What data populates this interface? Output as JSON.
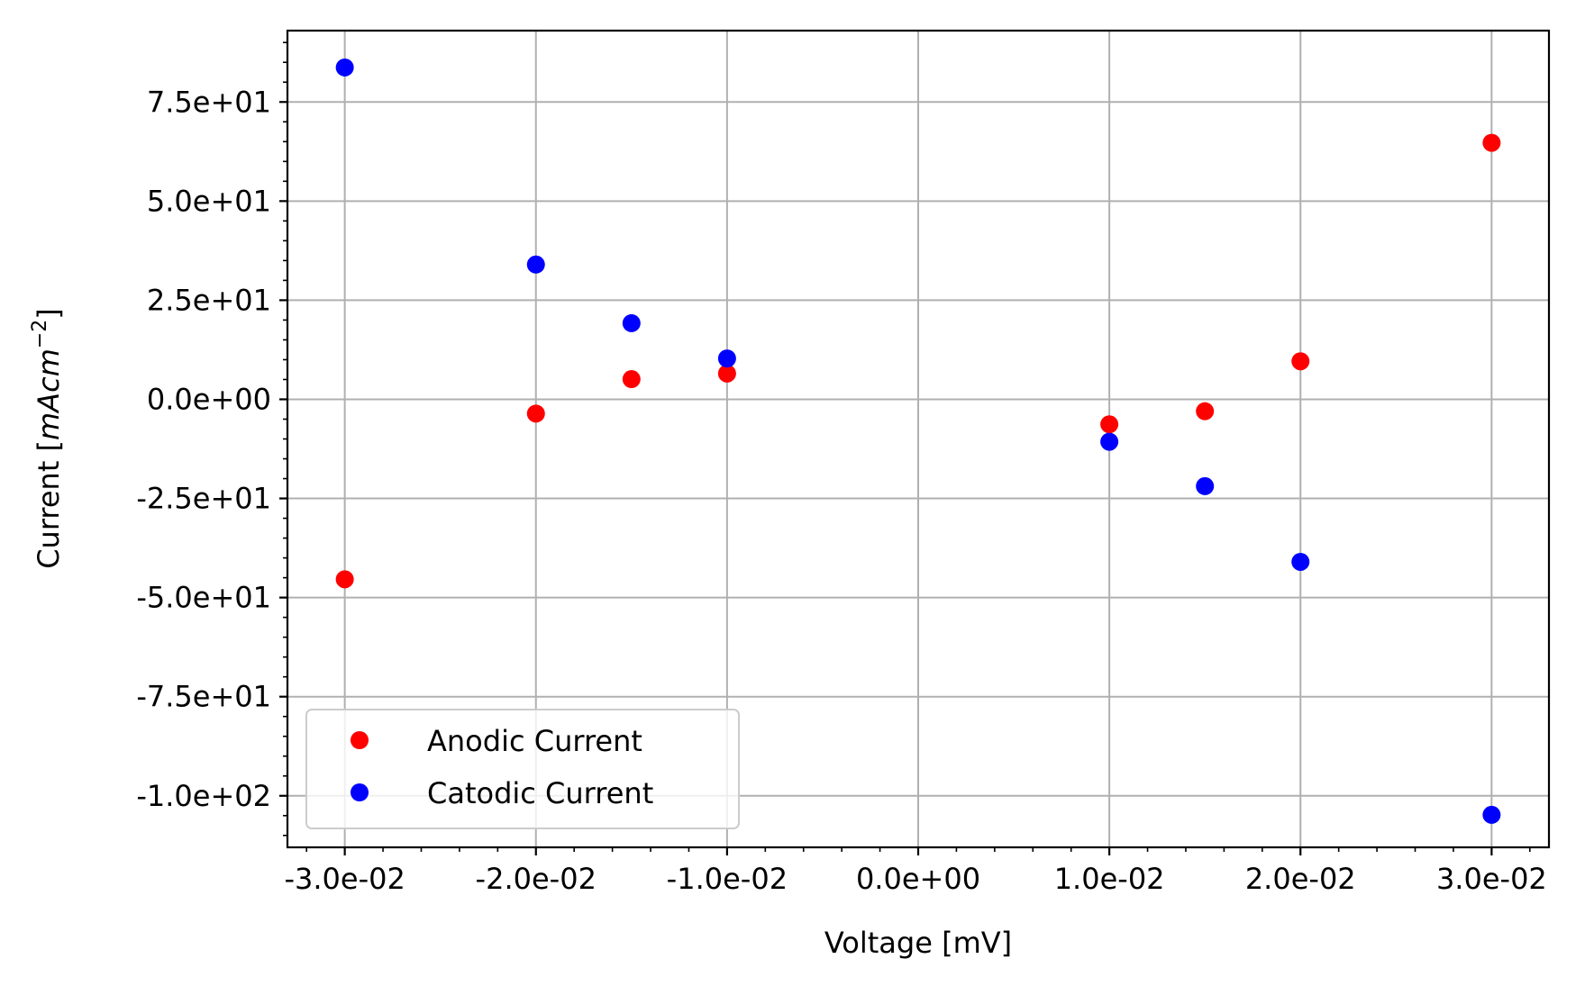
{
  "chart_data": {
    "type": "scatter",
    "xlabel": "Voltage [mV]",
    "ylabel_main": "Current [",
    "ylabel_italic": "mAcm",
    "ylabel_sup": "−2",
    "ylabel_end": "]",
    "xlim": [
      -0.033,
      0.033
    ],
    "ylim": [
      -113,
      93
    ],
    "xticks": [
      -0.03,
      -0.02,
      -0.01,
      0.0,
      0.01,
      0.02,
      0.03
    ],
    "xtick_labels": [
      "-3.0e-02",
      "-2.0e-02",
      "-1.0e-02",
      "0.0e+00",
      "1.0e-02",
      "2.0e-02",
      "3.0e-02"
    ],
    "yticks": [
      75,
      50,
      25,
      0,
      -25,
      -50,
      -75,
      -100
    ],
    "ytick_labels": [
      "7.5e+01",
      "5.0e+01",
      "2.5e+01",
      "0.0e+00",
      "-2.5e+01",
      "-5.0e+01",
      "-7.5e+01",
      "-1.0e+02"
    ],
    "grid": true,
    "legend_position": "lower-left",
    "series": [
      {
        "name": "Anodic Current",
        "color": "#ff0000",
        "x": [
          -0.03,
          -0.02,
          -0.015,
          -0.01,
          0.01,
          0.015,
          0.02,
          0.03
        ],
        "y": [
          -45.4,
          -3.6,
          5.1,
          6.5,
          -6.3,
          -3.0,
          9.6,
          64.7
        ]
      },
      {
        "name": "Catodic Current",
        "color": "#0000ff",
        "x": [
          -0.03,
          -0.02,
          -0.015,
          -0.01,
          0.01,
          0.015,
          0.02,
          0.03
        ],
        "y": [
          83.7,
          34.0,
          19.2,
          10.3,
          -10.7,
          -21.9,
          -41.0,
          -104.8
        ]
      }
    ]
  }
}
